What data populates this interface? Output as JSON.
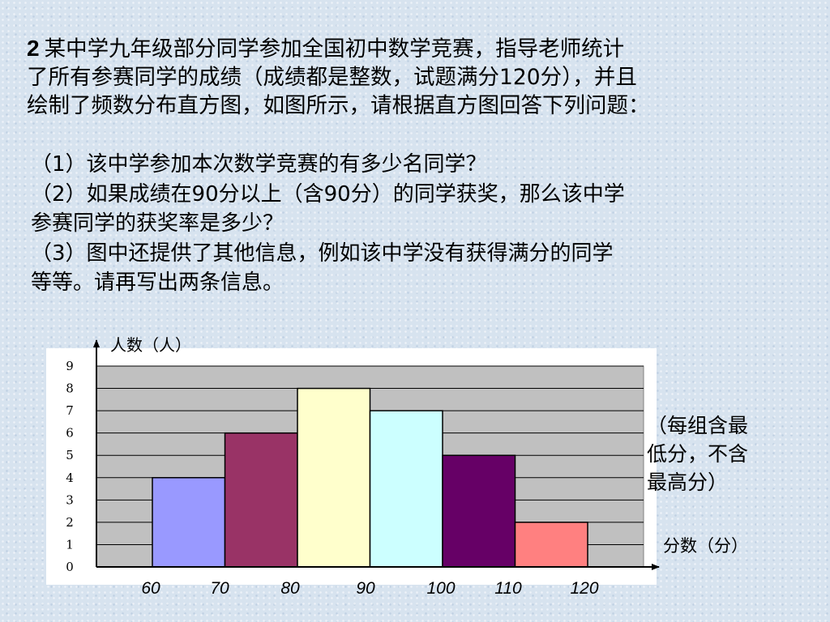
{
  "problem": {
    "number": "2",
    "lines": [
      "某中学九年级部分同学参加全国初中数学竞赛，指导老师统计",
      "了所有参赛同学的成绩（成绩都是整数，试题满分120分），并且",
      "绘制了频数分布直方图，如图所示，请根据直方图回答下列问题："
    ]
  },
  "questions": [
    "（1）该中学参加本次数学竞赛的有多少名同学？",
    "（2）如果成绩在90分以上（含90分）的同学获奖，那么该中学",
    "参赛同学的获奖率是多少？",
    "（3）图中还提供了其他信息，例如该中学没有获得满分的同学",
    "等等。请再写出两条信息。"
  ],
  "note": {
    "lines": [
      "（每组含最",
      "低分，不含",
      "最高分）"
    ]
  },
  "chart_data": {
    "type": "bar",
    "categories": [
      "60-70",
      "70-80",
      "80-90",
      "90-100",
      "100-110",
      "110-120"
    ],
    "x_ticks": [
      60,
      70,
      80,
      90,
      100,
      110,
      120
    ],
    "y_ticks": [
      0,
      1,
      2,
      3,
      4,
      5,
      6,
      7,
      8,
      9
    ],
    "values": [
      4,
      6,
      8,
      7,
      5,
      2
    ],
    "colors": [
      "#9999ff",
      "#993366",
      "#ffffcc",
      "#ccffff",
      "#660066",
      "#ff8080"
    ],
    "ylabel": "人数（人）",
    "xlabel": "分数（分）",
    "ylim": [
      0,
      9
    ],
    "xlim": [
      60,
      120
    ],
    "grid": true,
    "plot_background": "#c0c0c0",
    "frame_background": "#ffffff"
  }
}
